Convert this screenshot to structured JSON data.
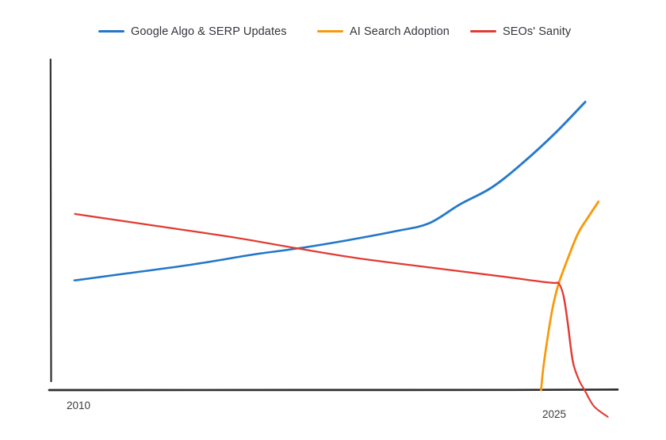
{
  "page": {
    "background": "#ffffff"
  },
  "legend": {
    "position": "top",
    "items": [
      {
        "label": "Google Algo & SERP Updates",
        "color": "#2277c8",
        "swatch": "line"
      },
      {
        "label": "AI Search Adoption",
        "color": "#f7990a",
        "swatch": "line"
      },
      {
        "label": "SEOs' Sanity",
        "color": "#e23b33",
        "swatch": "line"
      }
    ]
  },
  "axes": {
    "color": "#2e2e2e",
    "x_start_label": "2010",
    "x_end_label": "2025"
  },
  "chart_data": {
    "type": "line",
    "title": "",
    "xlabel": "",
    "ylabel": "",
    "style": "hand-drawn / xkcd-like, no gridlines, unlabeled y-axis",
    "grid": false,
    "legend_position": "top",
    "x_axis": {
      "min": 2010,
      "max": 2025,
      "tick_labels": [
        "2010",
        "2025"
      ]
    },
    "y_axis": {
      "min": 0,
      "max": 100,
      "tick_labels": []
    },
    "series": [
      {
        "name": "Google Algo & SERP Updates",
        "color": "#2277c8",
        "points": [
          [
            2010.0,
            32.8
          ],
          [
            2011.62,
            34.9
          ],
          [
            2013.58,
            37.5
          ],
          [
            2015.55,
            40.6
          ],
          [
            2016.9,
            42.3
          ],
          [
            2018.49,
            44.7
          ],
          [
            2019.97,
            47.3
          ],
          [
            2020.95,
            49.9
          ],
          [
            2021.93,
            55.3
          ],
          [
            2022.91,
            60.6
          ],
          [
            2023.89,
            67.9
          ],
          [
            2024.88,
            77.0
          ],
          [
            2025.81,
            86.2
          ]
        ]
      },
      {
        "name": "AI Search Adoption",
        "color": "#f7990a",
        "points": [
          [
            2024.43,
            -0.1
          ],
          [
            2024.53,
            7.4
          ],
          [
            2024.66,
            16.9
          ],
          [
            2024.8,
            25.2
          ],
          [
            2025.0,
            31.8
          ],
          [
            2025.32,
            40.6
          ],
          [
            2025.61,
            47.0
          ],
          [
            2025.91,
            52.0
          ],
          [
            2026.23,
            56.5
          ]
        ]
      },
      {
        "name": "SEOs' Sanity",
        "color": "#e23b33",
        "points": [
          [
            2010.0,
            52.7
          ],
          [
            2012.6,
            48.7
          ],
          [
            2015.06,
            45.4
          ],
          [
            2016.9,
            42.3
          ],
          [
            2018.74,
            39.4
          ],
          [
            2021.44,
            35.9
          ],
          [
            2023.4,
            33.5
          ],
          [
            2024.39,
            32.5
          ],
          [
            2024.88,
            31.9
          ],
          [
            2025.0,
            31.8
          ],
          [
            2025.12,
            28.3
          ],
          [
            2025.27,
            20.4
          ],
          [
            2025.44,
            8.1
          ],
          [
            2025.61,
            2.6
          ],
          [
            2025.78,
            -0.2
          ],
          [
            2026.1,
            -5.0
          ],
          [
            2026.5,
            -8.1
          ]
        ]
      }
    ]
  }
}
